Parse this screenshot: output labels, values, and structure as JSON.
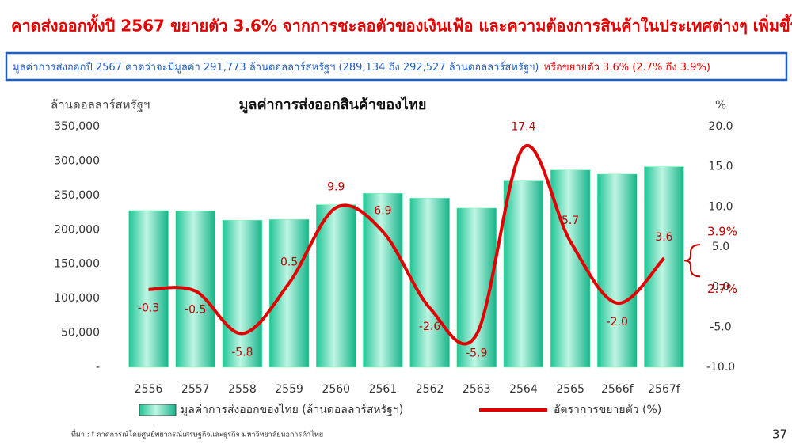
{
  "header": {
    "title": "คาดส่งออกทั้งปี 2567 ขยายตัว 3.6% จากการชะลอตัวของเงินเฟ้อ และความต้องการสินค้าในประเทศต่างๆ เพิ่มขึ้น",
    "summary": "มูลค่าการส่งออกปี 2567 คาดว่าจะมีมูลค่า 291,773 ล้านดอลลาร์สหรัฐฯ (289,134 ถึง 292,527 ล้านดอลลาร์สหรัฐฯ)",
    "summary_growth": "หรือขยายตัว 3.6% (2.7% ถึง 3.9%)"
  },
  "footer": {
    "source": "ที่มา : f คาดการณ์โดยศูนย์พยากรณ์เศรษฐกิจและธุรกิจ มหาวิทยาลัยหอการค้าไทย",
    "page": "37"
  },
  "chart_data": {
    "type": "bar",
    "title": "มูลค่าการส่งออกสินค้าของไทย",
    "y_label": "ล้านดอลลาร์สหรัฐฯ",
    "y2_label": "%",
    "categories": [
      "2556",
      "2557",
      "2558",
      "2559",
      "2560",
      "2561",
      "2562",
      "2563",
      "2564",
      "2565",
      "2566f",
      "2567f"
    ],
    "series": [
      {
        "name": "มูลค่าการส่งออกของไทย (ล้านดอลลาร์สหรัฐฯ)",
        "type": "bar",
        "color": "#2fd6a6",
        "values": [
          228000,
          227500,
          214000,
          215000,
          236500,
          253000,
          246000,
          231500,
          271000,
          287000,
          281000,
          291773
        ]
      },
      {
        "name": "อัตราการขยายตัว (%)",
        "type": "line",
        "axis": "y2",
        "color": "#e00000",
        "values": [
          -0.3,
          -0.5,
          -5.8,
          0.5,
          9.9,
          6.9,
          -2.6,
          -5.9,
          17.4,
          5.7,
          -2.0,
          3.6
        ],
        "value_labels": [
          "-0.3",
          "-0.5",
          "-5.8",
          "0.5",
          "9.9",
          "6.9",
          "-2.6",
          "-5.9",
          "17.4",
          "5.7",
          "-2.0",
          "3.6"
        ]
      }
    ],
    "ylim": [
      0,
      350000
    ],
    "yticks": [
      {
        "value": 0,
        "label": "-"
      },
      {
        "value": 50000,
        "label": "50,000"
      },
      {
        "value": 100000,
        "label": "100,000"
      },
      {
        "value": 150000,
        "label": "150,000"
      },
      {
        "value": 200000,
        "label": "200,000"
      },
      {
        "value": 250000,
        "label": "250,000"
      },
      {
        "value": 300000,
        "label": "300,000"
      },
      {
        "value": 350000,
        "label": "350,000"
      }
    ],
    "y2lim": [
      -10,
      20
    ],
    "y2ticks": [
      {
        "value": -10,
        "label": "-10.0"
      },
      {
        "value": -5,
        "label": "-5.0"
      },
      {
        "value": 0,
        "label": "0.0"
      },
      {
        "value": 5,
        "label": "5.0"
      },
      {
        "value": 10,
        "label": "10.0"
      },
      {
        "value": 15,
        "label": "15.0"
      },
      {
        "value": 20,
        "label": "20.0"
      }
    ],
    "annotations": [
      {
        "label": "3.9%",
        "value": 3.9
      },
      {
        "label": "2.7%",
        "value": 2.7
      }
    ],
    "legend": "bottom"
  }
}
